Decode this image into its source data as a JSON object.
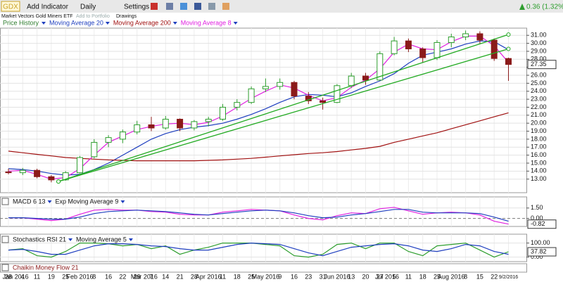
{
  "ui": {
    "symbol": "GDX",
    "menu": [
      "Add Indicator",
      "Daily",
      "Settings"
    ],
    "name": "Market Vectors Gold Miners ETF",
    "portfolio": "Add to Portfolio",
    "drawings": "Drawings",
    "change": "0.36 (1.32%)",
    "lower_panel": "Chaikin Money Flow 21"
  },
  "chart_data": [
    {
      "type": "candlestick",
      "series_name": "Price History",
      "categories": [
        "28",
        "4",
        "11",
        "19",
        "25",
        "Feb 2016",
        "8",
        "16",
        "22",
        "29",
        "7",
        "14",
        "21",
        "28",
        "Apr 2016",
        "11",
        "18",
        "25",
        "May 2016",
        "9",
        "16",
        "23",
        "31",
        "Jun 2016",
        "13",
        "20",
        "27",
        "5",
        "11",
        "18",
        "25",
        "Aug 2016",
        "8",
        "15",
        "22",
        "9/2/2016"
      ],
      "month_labels": [
        {
          "label": "Jan 2016",
          "index": 0
        },
        {
          "label": "Mar 2016",
          "index": 9
        },
        {
          "label": "Jul 2016",
          "index": 26
        }
      ],
      "open": [
        13.9,
        13.8,
        14.1,
        13.3,
        12.9,
        13.8,
        15.8,
        17.6,
        18.0,
        18.9,
        19.8,
        19.4,
        20.5,
        19.4,
        20.2,
        20.5,
        22.0,
        22.6,
        24.3,
        24.6,
        25.1,
        23.4,
        22.8,
        22.6,
        24.7,
        25.9,
        25.4,
        28.7,
        30.3,
        29.3,
        28.2,
        30.1,
        30.8,
        31.2,
        30.4,
        28.1
      ],
      "high": [
        14.3,
        14.4,
        14.3,
        13.5,
        14.0,
        15.9,
        18.0,
        18.5,
        19.2,
        20.3,
        20.8,
        20.9,
        20.6,
        20.4,
        20.8,
        22.4,
        23.0,
        24.6,
        25.6,
        25.6,
        25.3,
        23.9,
        23.2,
        24.9,
        26.3,
        26.3,
        29.0,
        30.8,
        30.6,
        29.5,
        30.4,
        31.2,
        31.6,
        31.5,
        30.6,
        28.2
      ],
      "low": [
        13.6,
        13.5,
        13.1,
        12.6,
        12.8,
        13.7,
        15.6,
        17.0,
        17.5,
        18.6,
        19.0,
        19.2,
        19.0,
        19.1,
        19.6,
        20.3,
        21.6,
        22.4,
        23.9,
        24.2,
        23.0,
        22.4,
        21.7,
        22.5,
        24.4,
        24.8,
        25.3,
        28.5,
        28.9,
        27.6,
        27.9,
        29.5,
        30.4,
        30.0,
        27.8,
        25.3
      ],
      "close": [
        13.8,
        14.1,
        13.3,
        12.9,
        13.8,
        15.7,
        17.6,
        18.2,
        18.9,
        19.8,
        19.4,
        20.5,
        19.4,
        20.2,
        20.5,
        22.0,
        22.6,
        24.3,
        24.6,
        25.1,
        23.4,
        22.8,
        22.6,
        24.7,
        25.9,
        25.4,
        28.7,
        30.3,
        29.3,
        28.2,
        30.1,
        30.8,
        31.2,
        30.4,
        28.1,
        27.35
      ],
      "up_color": "#2e9e2e",
      "down_color": "#8b1a1a",
      "series": [
        {
          "name": "Moving Average 20",
          "color": "#1f3fbf",
          "values": [
            14.3,
            14.2,
            14.0,
            13.7,
            13.5,
            13.6,
            14.2,
            15.0,
            16.0,
            17.0,
            18.0,
            18.7,
            19.2,
            19.5,
            19.7,
            20.0,
            20.5,
            21.1,
            21.8,
            22.6,
            23.3,
            23.6,
            23.5,
            23.3,
            23.8,
            24.6,
            25.3,
            26.2,
            27.5,
            28.5,
            28.9,
            29.3,
            29.9,
            30.3,
            30.2,
            29.2
          ]
        },
        {
          "name": "Moving Average 200",
          "color": "#a01010",
          "values": [
            16.5,
            16.3,
            16.1,
            15.9,
            15.7,
            15.6,
            15.5,
            15.4,
            15.35,
            15.3,
            15.3,
            15.3,
            15.3,
            15.3,
            15.35,
            15.4,
            15.5,
            15.6,
            15.75,
            15.9,
            16.05,
            16.2,
            16.3,
            16.45,
            16.65,
            16.85,
            17.1,
            17.6,
            18.0,
            18.4,
            18.8,
            19.3,
            19.8,
            20.3,
            20.8,
            21.3
          ]
        },
        {
          "name": "Moving Average 8",
          "color": "#e020e0",
          "values": [
            14.0,
            14.1,
            13.6,
            13.0,
            13.2,
            14.3,
            16.0,
            17.6,
            18.4,
            19.2,
            19.6,
            19.9,
            20.0,
            19.8,
            20.1,
            20.9,
            22.0,
            23.1,
            24.0,
            24.8,
            24.4,
            23.5,
            22.8,
            23.2,
            24.5,
            25.4,
            26.8,
            28.9,
            29.9,
            29.3,
            29.2,
            30.2,
            30.9,
            30.9,
            29.7,
            27.6
          ]
        }
      ],
      "trendlines": [
        {
          "color": "#22aa22",
          "x": [
            3.5,
            35
          ],
          "y": [
            12.7,
            31.1
          ]
        },
        {
          "color": "#22aa22",
          "x": [
            3.5,
            35
          ],
          "y": [
            12.7,
            29.3
          ]
        }
      ],
      "ylim": [
        11.3,
        31.9
      ],
      "yticks": [
        {
          "value": 13,
          "label": "13.00"
        },
        {
          "value": 14,
          "label": "14.00"
        },
        {
          "value": 15,
          "label": "15.00"
        },
        {
          "value": 16,
          "label": "16.00"
        },
        {
          "value": 17,
          "label": "17.00"
        },
        {
          "value": 18,
          "label": "18.00"
        },
        {
          "value": 19,
          "label": "19.00"
        },
        {
          "value": 20,
          "label": "20.00"
        },
        {
          "value": 21,
          "label": "21.00"
        },
        {
          "value": 22,
          "label": "22.00"
        },
        {
          "value": 23,
          "label": "23.00"
        },
        {
          "value": 24,
          "label": "24.00"
        },
        {
          "value": 25,
          "label": "25.00"
        },
        {
          "value": 26,
          "label": "26.00"
        },
        {
          "value": 27,
          "label": "27.00"
        },
        {
          "value": 28,
          "label": "28.00"
        },
        {
          "value": 29,
          "label": "29.00"
        },
        {
          "value": 30,
          "label": "30.00"
        },
        {
          "value": 31,
          "label": "31.00"
        }
      ],
      "grid": true
    },
    {
      "type": "line",
      "series": [
        {
          "name": "MACD 6 13",
          "color": "#e020e0",
          "values": [
            0.1,
            0.1,
            -0.1,
            -0.3,
            -0.1,
            0.6,
            1.2,
            1.3,
            1.2,
            1.2,
            1.0,
            0.9,
            0.6,
            0.5,
            0.5,
            0.9,
            1.1,
            1.3,
            1.2,
            1.1,
            0.5,
            0.0,
            -0.2,
            0.4,
            0.8,
            0.7,
            1.4,
            1.6,
            1.1,
            0.6,
            0.8,
            0.9,
            0.8,
            0.5,
            -0.4,
            -0.82
          ]
        },
        {
          "name": "Exp Moving Average 9",
          "color": "#1f3fbf",
          "values": [
            0.1,
            0.1,
            0.0,
            -0.1,
            -0.1,
            0.2,
            0.7,
            1.0,
            1.1,
            1.2,
            1.1,
            1.0,
            0.8,
            0.6,
            0.5,
            0.7,
            0.9,
            1.1,
            1.2,
            1.1,
            0.8,
            0.4,
            0.1,
            0.2,
            0.5,
            0.7,
            1.0,
            1.3,
            1.3,
            0.9,
            0.8,
            0.8,
            0.8,
            0.7,
            0.2,
            -0.4
          ]
        }
      ],
      "ylim": [
        -1.15,
        3.1
      ],
      "yticks": [
        {
          "value": 0,
          "label": "0.00"
        },
        {
          "value": 1.5,
          "label": "1.50"
        }
      ]
    },
    {
      "type": "line",
      "series": [
        {
          "name": "Stochastics RSI 21",
          "color": "#2e9e2e",
          "values": [
            50,
            60,
            10,
            0,
            40,
            100,
            100,
            95,
            80,
            90,
            60,
            80,
            20,
            50,
            70,
            100,
            100,
            100,
            90,
            80,
            10,
            0,
            20,
            90,
            100,
            60,
            100,
            100,
            40,
            10,
            80,
            90,
            100,
            50,
            0,
            37.82
          ]
        },
        {
          "name": "Moving Average 5",
          "color": "#1f3fbf",
          "values": [
            50,
            55,
            40,
            20,
            20,
            50,
            80,
            95,
            95,
            90,
            80,
            75,
            60,
            50,
            50,
            70,
            90,
            100,
            95,
            90,
            60,
            30,
            10,
            40,
            70,
            80,
            90,
            95,
            80,
            50,
            40,
            60,
            90,
            80,
            40,
            20
          ]
        }
      ],
      "ylim": [
        -32,
        163
      ],
      "yticks": [
        {
          "value": 0,
          "label": "0.00"
        },
        {
          "value": 100,
          "label": "100.00"
        }
      ]
    }
  ]
}
